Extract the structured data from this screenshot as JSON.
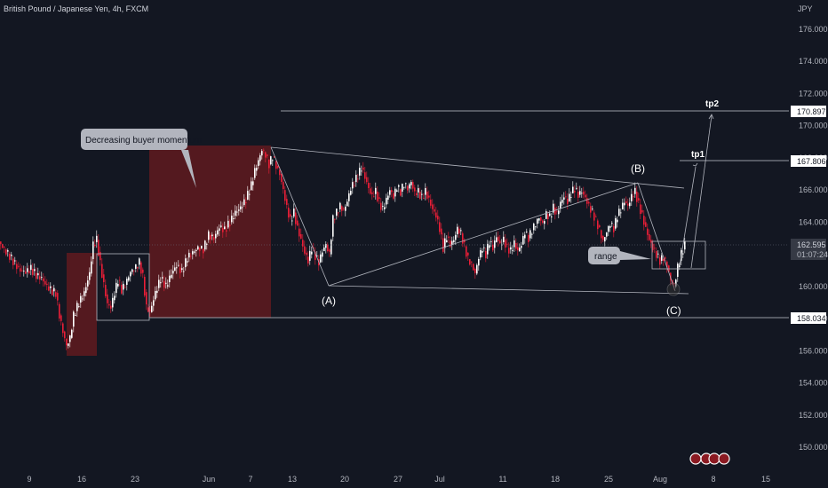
{
  "chart_data": {
    "type": "candlestick",
    "title": "British Pound / Japanese Yen, 4h, FXCM",
    "currency": "JPY",
    "y_ticks": [
      150,
      152,
      154,
      156,
      158,
      160,
      162,
      164,
      166,
      168,
      170,
      172,
      174,
      176
    ],
    "y_tick_labels": [
      "150.000",
      "152.000",
      "154.000",
      "156.000",
      "158.000",
      "160.000",
      "162.000",
      "164.000",
      "166.000",
      "168.000",
      "170.000",
      "172.000",
      "174.000",
      "176.000"
    ],
    "ylim": [
      149,
      177.2
    ],
    "x_tick_labels": [
      "9",
      "16",
      "23",
      "Jun",
      "7",
      "13",
      "20",
      "27",
      "Jul",
      "11",
      "18",
      "25",
      "Aug",
      "8",
      "15"
    ],
    "price_close": [
      [
        0,
        162.8
      ],
      [
        6,
        162.3
      ],
      [
        12,
        161.9
      ],
      [
        18,
        161.4
      ],
      [
        24,
        161.0
      ],
      [
        30,
        160.9
      ],
      [
        36,
        161.1
      ],
      [
        42,
        160.7
      ],
      [
        48,
        160.5
      ],
      [
        54,
        160.0
      ],
      [
        60,
        159.7
      ],
      [
        64,
        159.6
      ],
      [
        68,
        158.2
      ],
      [
        72,
        157.2
      ],
      [
        76,
        156.3
      ],
      [
        80,
        156.8
      ],
      [
        84,
        158.2
      ],
      [
        90,
        159.0
      ],
      [
        96,
        159.6
      ],
      [
        102,
        160.8
      ],
      [
        106,
        162.6
      ],
      [
        110,
        162.9
      ],
      [
        114,
        161.4
      ],
      [
        118,
        160.1
      ],
      [
        122,
        158.9
      ],
      [
        126,
        158.7
      ],
      [
        130,
        159.6
      ],
      [
        134,
        160.4
      ],
      [
        138,
        159.8
      ],
      [
        142,
        160.1
      ],
      [
        148,
        160.9
      ],
      [
        154,
        161.2
      ],
      [
        158,
        161.5
      ],
      [
        162,
        160.6
      ],
      [
        166,
        158.7
      ],
      [
        170,
        158.4
      ],
      [
        176,
        159.6
      ],
      [
        182,
        160.5
      ],
      [
        188,
        160.0
      ],
      [
        194,
        160.8
      ],
      [
        200,
        161.3
      ],
      [
        206,
        160.9
      ],
      [
        212,
        161.8
      ],
      [
        218,
        162.1
      ],
      [
        224,
        162.4
      ],
      [
        230,
        162.3
      ],
      [
        236,
        163.2
      ],
      [
        242,
        163.0
      ],
      [
        248,
        163.7
      ],
      [
        254,
        163.5
      ],
      [
        260,
        164.0
      ],
      [
        266,
        164.6
      ],
      [
        272,
        164.9
      ],
      [
        278,
        165.4
      ],
      [
        284,
        166.3
      ],
      [
        288,
        167.2
      ],
      [
        292,
        167.8
      ],
      [
        296,
        168.5
      ],
      [
        300,
        168.2
      ],
      [
        304,
        167.6
      ],
      [
        308,
        168.1
      ],
      [
        312,
        167.5
      ],
      [
        316,
        167.0
      ],
      [
        320,
        166.0
      ],
      [
        324,
        164.9
      ],
      [
        328,
        164.1
      ],
      [
        332,
        164.6
      ],
      [
        336,
        163.6
      ],
      [
        340,
        162.9
      ],
      [
        344,
        162.1
      ],
      [
        348,
        161.6
      ],
      [
        352,
        162.4
      ],
      [
        356,
        161.9
      ],
      [
        360,
        161.5
      ],
      [
        364,
        162.2
      ],
      [
        368,
        162.6
      ],
      [
        372,
        162.0
      ],
      [
        376,
        164.2
      ],
      [
        380,
        164.6
      ],
      [
        384,
        165.0
      ],
      [
        388,
        164.7
      ],
      [
        392,
        165.3
      ],
      [
        396,
        166.1
      ],
      [
        400,
        166.5
      ],
      [
        404,
        166.9
      ],
      [
        408,
        167.4
      ],
      [
        412,
        166.8
      ],
      [
        416,
        166.1
      ],
      [
        420,
        165.6
      ],
      [
        424,
        165.9
      ],
      [
        428,
        165.2
      ],
      [
        432,
        164.8
      ],
      [
        436,
        165.4
      ],
      [
        440,
        166.0
      ],
      [
        444,
        165.6
      ],
      [
        448,
        166.2
      ],
      [
        452,
        165.9
      ],
      [
        456,
        166.4
      ],
      [
        460,
        166.1
      ],
      [
        464,
        166.5
      ],
      [
        468,
        165.8
      ],
      [
        472,
        165.9
      ],
      [
        476,
        165.5
      ],
      [
        480,
        165.9
      ],
      [
        484,
        165.4
      ],
      [
        488,
        164.8
      ],
      [
        492,
        164.4
      ],
      [
        496,
        163.6
      ],
      [
        500,
        162.4
      ],
      [
        504,
        163.1
      ],
      [
        508,
        162.6
      ],
      [
        512,
        162.9
      ],
      [
        516,
        163.6
      ],
      [
        520,
        163.3
      ],
      [
        524,
        162.5
      ],
      [
        528,
        161.7
      ],
      [
        532,
        161.4
      ],
      [
        536,
        160.8
      ],
      [
        540,
        161.8
      ],
      [
        544,
        162.4
      ],
      [
        548,
        162.0
      ],
      [
        552,
        162.8
      ],
      [
        556,
        162.4
      ],
      [
        560,
        163.1
      ],
      [
        564,
        162.6
      ],
      [
        568,
        162.9
      ],
      [
        572,
        162.4
      ],
      [
        576,
        162.2
      ],
      [
        580,
        162.7
      ],
      [
        584,
        162.2
      ],
      [
        588,
        162.6
      ],
      [
        592,
        163.4
      ],
      [
        596,
        163.0
      ],
      [
        600,
        163.5
      ],
      [
        604,
        163.9
      ],
      [
        608,
        164.3
      ],
      [
        612,
        163.9
      ],
      [
        616,
        164.5
      ],
      [
        620,
        164.3
      ],
      [
        624,
        164.9
      ],
      [
        628,
        164.5
      ],
      [
        632,
        165.2
      ],
      [
        636,
        165.6
      ],
      [
        640,
        165.3
      ],
      [
        644,
        165.8
      ],
      [
        648,
        166.1
      ],
      [
        652,
        165.7
      ],
      [
        656,
        165.9
      ],
      [
        660,
        165.5
      ],
      [
        664,
        165.0
      ],
      [
        668,
        164.6
      ],
      [
        672,
        164.1
      ],
      [
        676,
        163.5
      ],
      [
        680,
        162.8
      ],
      [
        684,
        163.4
      ],
      [
        688,
        163.9
      ],
      [
        692,
        163.6
      ],
      [
        696,
        164.4
      ],
      [
        700,
        164.8
      ],
      [
        704,
        165.3
      ],
      [
        708,
        165.0
      ],
      [
        712,
        165.6
      ],
      [
        716,
        165.9
      ],
      [
        720,
        165.1
      ],
      [
        724,
        164.4
      ],
      [
        728,
        163.6
      ],
      [
        732,
        162.9
      ],
      [
        736,
        162.4
      ],
      [
        740,
        162.0
      ],
      [
        744,
        161.6
      ],
      [
        748,
        161.8
      ],
      [
        752,
        161.3
      ],
      [
        756,
        160.4
      ],
      [
        760,
        160.0
      ],
      [
        764,
        161.2
      ],
      [
        768,
        162.0
      ],
      [
        772,
        162.6
      ]
    ],
    "annotations": {
      "callout_momentum": "Decreasing buyer momentum",
      "callout_range": "range",
      "wave_a": "(A)",
      "wave_b": "(B)",
      "wave_c": "(C)",
      "tp1": "tp1",
      "tp2": "tp2"
    },
    "levels": [
      {
        "price": 170.897,
        "label": "170.897"
      },
      {
        "price": 167.806,
        "label": "167.806"
      },
      {
        "price": 158.034,
        "label": "158.034"
      }
    ],
    "current_price": {
      "price": 162.595,
      "label": "162.595",
      "countdown": "01:07:24"
    },
    "colors": {
      "background": "#131722",
      "bull": "#ffffff",
      "bear": "#e91e37",
      "zone": "#5c1a1f",
      "lines": "#b2b5be",
      "grid": "#1e222d"
    },
    "grid": false
  }
}
